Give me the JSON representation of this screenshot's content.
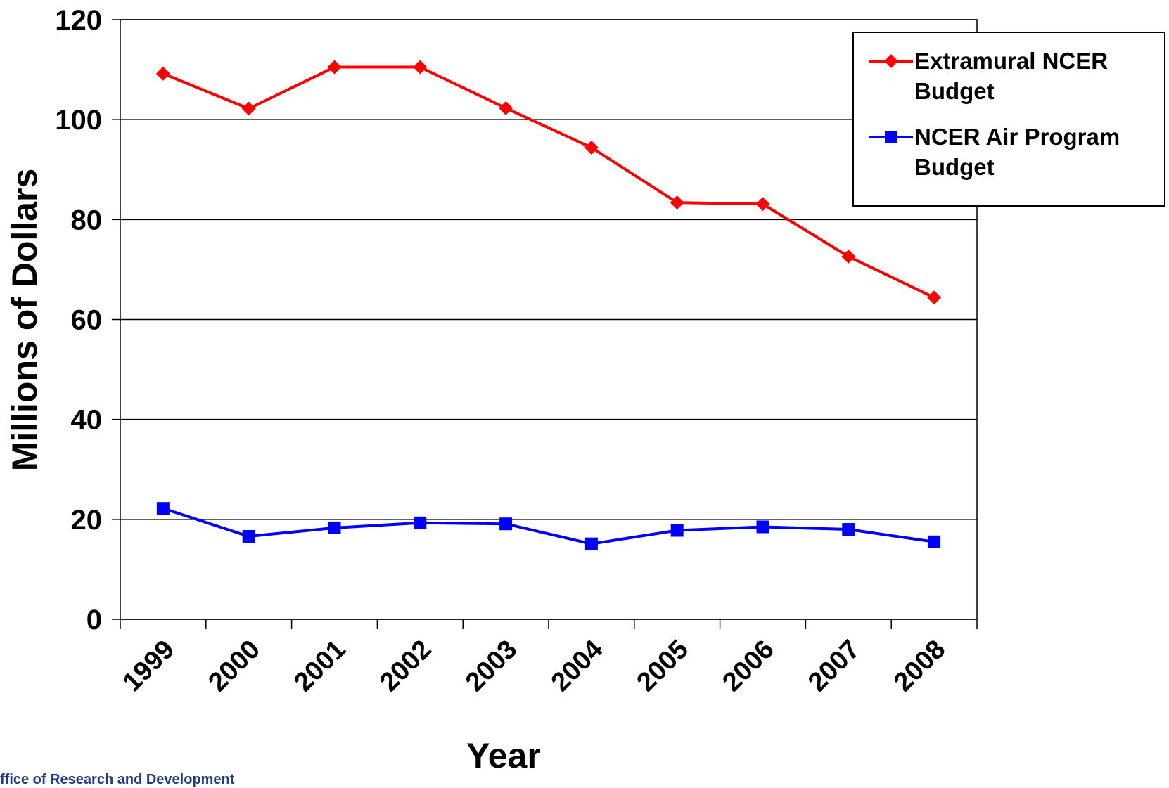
{
  "chart_data": {
    "type": "line",
    "x_label": "Year",
    "y_label": "Millions of Dollars",
    "categories": [
      "1999",
      "2000",
      "2001",
      "2002",
      "2003",
      "2004",
      "2005",
      "2006",
      "2007",
      "2008"
    ],
    "series": [
      {
        "name": "Extramural NCER Budget",
        "color": "#ff0000",
        "marker": "diamond",
        "values": [
          109.2,
          102.2,
          110.5,
          110.5,
          102.3,
          94.4,
          83.4,
          83.1,
          72.6,
          64.4
        ]
      },
      {
        "name": "NCER Air Program Budget",
        "color": "#0000ff",
        "marker": "square",
        "values": [
          22.2,
          16.6,
          18.3,
          19.3,
          19.1,
          15.1,
          17.8,
          18.5,
          18.0,
          15.5
        ]
      }
    ],
    "ylim": [
      0,
      120
    ],
    "yticks": [
      0,
      20,
      40,
      60,
      80,
      100,
      120
    ],
    "grid": true,
    "legend": "top-right"
  },
  "footer": "ffice of Research and Development"
}
